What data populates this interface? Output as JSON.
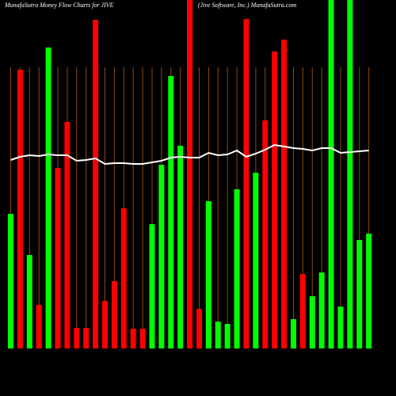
{
  "chart_data": {
    "type": "bar",
    "title": "MunafaSutra  Money  Flow  Charts for JIVE",
    "subtitle": "(Jive   Software,  Inc.) MunafaSutra.com",
    "ylim": [
      0,
      440
    ],
    "bars": {
      "values": [
        170,
        352,
        118,
        55,
        380,
        228,
        286,
        26,
        26,
        415,
        60,
        85,
        177,
        25,
        25,
        157,
        232,
        344,
        256,
        440,
        50,
        186,
        34,
        31,
        201,
        416,
        222,
        288,
        375,
        390,
        37,
        94,
        66,
        96,
        440,
        53,
        440,
        137,
        145
      ],
      "colors": [
        "#00ff00",
        "#ff0000",
        "#00ff00",
        "#ff0000",
        "#00ff00",
        "#ff0000",
        "#ff0000",
        "#ff0000",
        "#ff0000",
        "#ff0000",
        "#ff0000",
        "#ff0000",
        "#ff0000",
        "#ff0000",
        "#ff0000",
        "#00ff00",
        "#00ff00",
        "#00ff00",
        "#00ff00",
        "#ff0000",
        "#ff0000",
        "#00ff00",
        "#00ff00",
        "#00ff00",
        "#00ff00",
        "#ff0000",
        "#00ff00",
        "#ff0000",
        "#ff0000",
        "#ff0000",
        "#00ff00",
        "#ff0000",
        "#00ff00",
        "#00ff00",
        "#00ff00",
        "#00ff00",
        "#00ff00",
        "#00ff00",
        "#00ff00"
      ]
    },
    "line": {
      "color": "#ffffff",
      "values": [
        238,
        242,
        244,
        243,
        245,
        244,
        244,
        237,
        238,
        240,
        233,
        234,
        234,
        233,
        233,
        235,
        237,
        241,
        242,
        241,
        241,
        247,
        244,
        245,
        250,
        242,
        246,
        251,
        257,
        255,
        253,
        252,
        250,
        253,
        253,
        247,
        248,
        249,
        250
      ]
    },
    "grid_color": "#8b4a13"
  }
}
